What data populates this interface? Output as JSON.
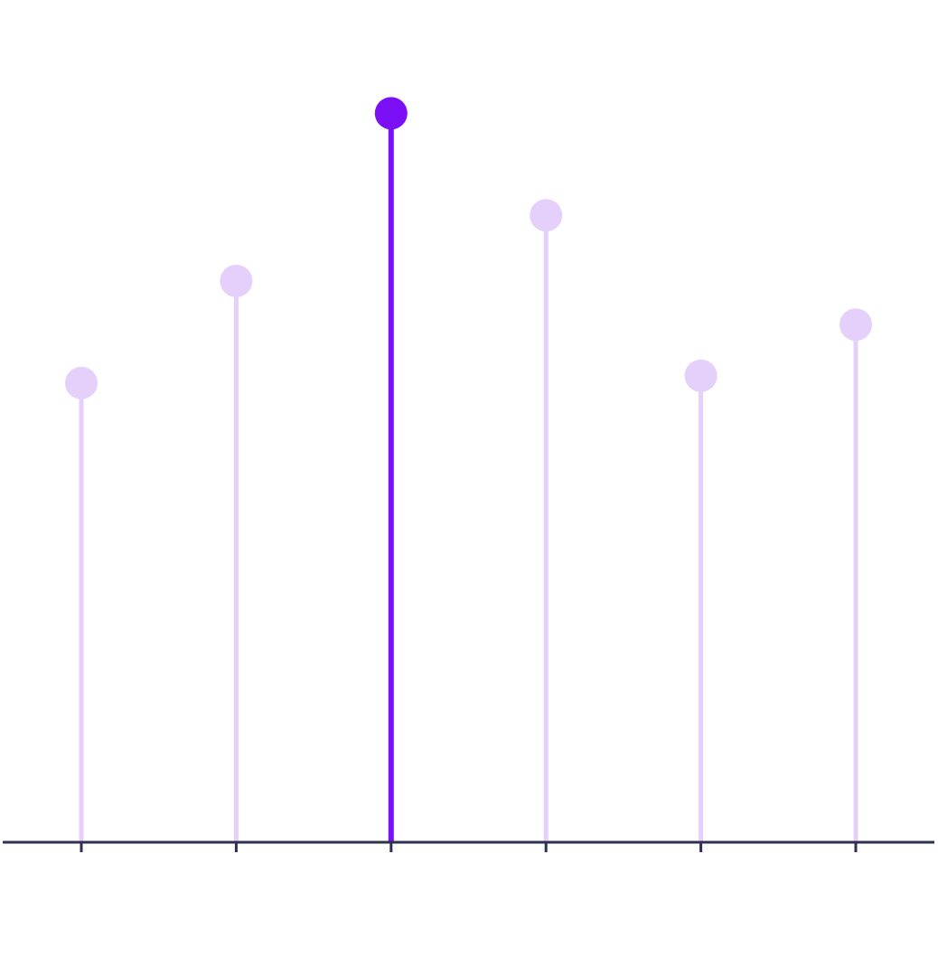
{
  "chart_data": {
    "type": "lollipop",
    "categories": [
      "",
      "",
      "",
      "",
      "",
      ""
    ],
    "values": [
      63,
      77,
      100,
      86,
      64,
      71
    ],
    "highlight_index": 2,
    "ylim": [
      0,
      105
    ],
    "title": "",
    "xlabel": "",
    "ylabel": "",
    "grid": false,
    "legend": "none"
  },
  "colors": {
    "highlight": "#7b0ff5",
    "muted": "#e4d0fb",
    "axis": "#2d3250",
    "label": "#f7f5fb",
    "background": "#ffffff"
  }
}
